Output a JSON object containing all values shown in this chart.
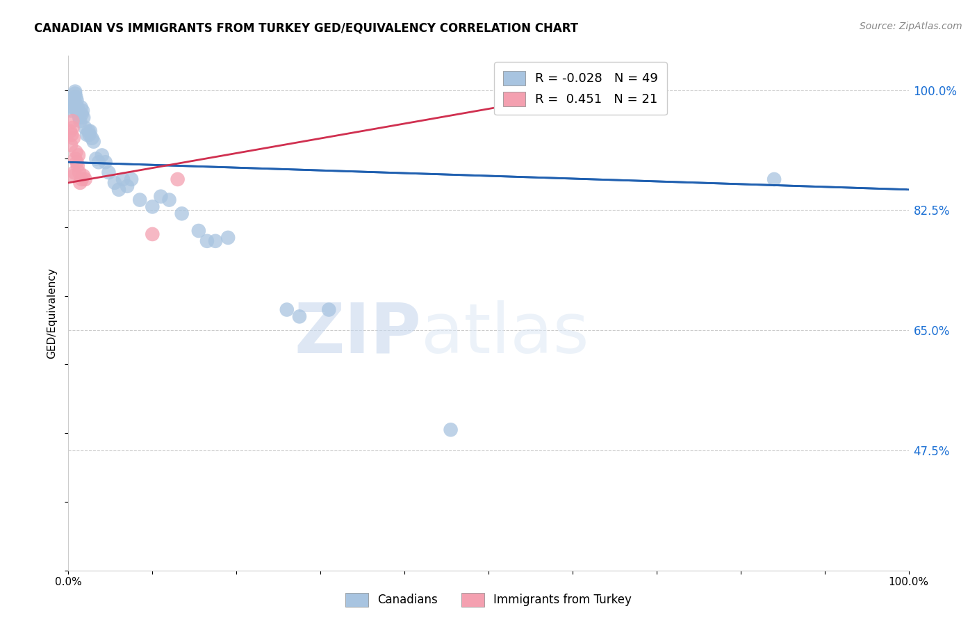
{
  "title": "CANADIAN VS IMMIGRANTS FROM TURKEY GED/EQUIVALENCY CORRELATION CHART",
  "source": "Source: ZipAtlas.com",
  "ylabel": "GED/Equivalency",
  "xlim": [
    0.0,
    1.0
  ],
  "ylim": [
    0.3,
    1.05
  ],
  "yticks": [
    0.475,
    0.65,
    0.825,
    1.0
  ],
  "ytick_labels": [
    "47.5%",
    "65.0%",
    "82.5%",
    "100.0%"
  ],
  "xtick_positions": [
    0.0,
    0.1,
    0.2,
    0.3,
    0.4,
    0.5,
    0.6,
    0.7,
    0.8,
    0.9,
    1.0
  ],
  "xtick_labels": [
    "0.0%",
    "",
    "",
    "",
    "",
    "",
    "",
    "",
    "",
    "",
    "100.0%"
  ],
  "canadians_color": "#a8c4e0",
  "turkey_color": "#f4a0b0",
  "trend_canadian_color": "#2060b0",
  "trend_turkey_color": "#d03050",
  "r_canadian": -0.028,
  "n_canadian": 49,
  "r_turkey": 0.451,
  "n_turkey": 21,
  "watermark_zip": "ZIP",
  "watermark_atlas": "atlas",
  "legend_canadians": "Canadians",
  "legend_turkey": "Immigrants from Turkey",
  "trend_canadian_x0": 0.0,
  "trend_canadian_y0": 0.895,
  "trend_canadian_x1": 1.0,
  "trend_canadian_y1": 0.855,
  "trend_turkey_x0": 0.0,
  "trend_turkey_y0": 0.865,
  "trend_turkey_x1": 0.65,
  "trend_turkey_y1": 1.005,
  "canadians_x": [
    0.003,
    0.005,
    0.006,
    0.007,
    0.007,
    0.008,
    0.008,
    0.009,
    0.01,
    0.01,
    0.011,
    0.012,
    0.013,
    0.014,
    0.015,
    0.016,
    0.017,
    0.018,
    0.02,
    0.022,
    0.024,
    0.025,
    0.026,
    0.028,
    0.03,
    0.033,
    0.036,
    0.04,
    0.044,
    0.048,
    0.055,
    0.06,
    0.065,
    0.07,
    0.075,
    0.085,
    0.1,
    0.11,
    0.12,
    0.135,
    0.155,
    0.165,
    0.175,
    0.19,
    0.26,
    0.275,
    0.31,
    0.455,
    0.84
  ],
  "canadians_y": [
    0.97,
    0.975,
    0.98,
    0.985,
    0.99,
    0.995,
    0.998,
    0.99,
    0.985,
    0.97,
    0.975,
    0.965,
    0.96,
    0.955,
    0.975,
    0.965,
    0.97,
    0.96,
    0.945,
    0.935,
    0.94,
    0.935,
    0.94,
    0.93,
    0.925,
    0.9,
    0.895,
    0.905,
    0.895,
    0.88,
    0.865,
    0.855,
    0.87,
    0.86,
    0.87,
    0.84,
    0.83,
    0.845,
    0.84,
    0.82,
    0.795,
    0.78,
    0.78,
    0.785,
    0.68,
    0.67,
    0.68,
    0.505,
    0.87
  ],
  "turkey_x": [
    0.002,
    0.003,
    0.004,
    0.005,
    0.005,
    0.006,
    0.006,
    0.007,
    0.008,
    0.009,
    0.01,
    0.011,
    0.012,
    0.013,
    0.014,
    0.016,
    0.018,
    0.02,
    0.1,
    0.13,
    0.61
  ],
  "turkey_y": [
    0.94,
    0.92,
    0.935,
    0.945,
    0.955,
    0.93,
    0.875,
    0.88,
    0.9,
    0.91,
    0.895,
    0.89,
    0.905,
    0.88,
    0.865,
    0.87,
    0.875,
    0.87,
    0.79,
    0.87,
    0.99
  ]
}
